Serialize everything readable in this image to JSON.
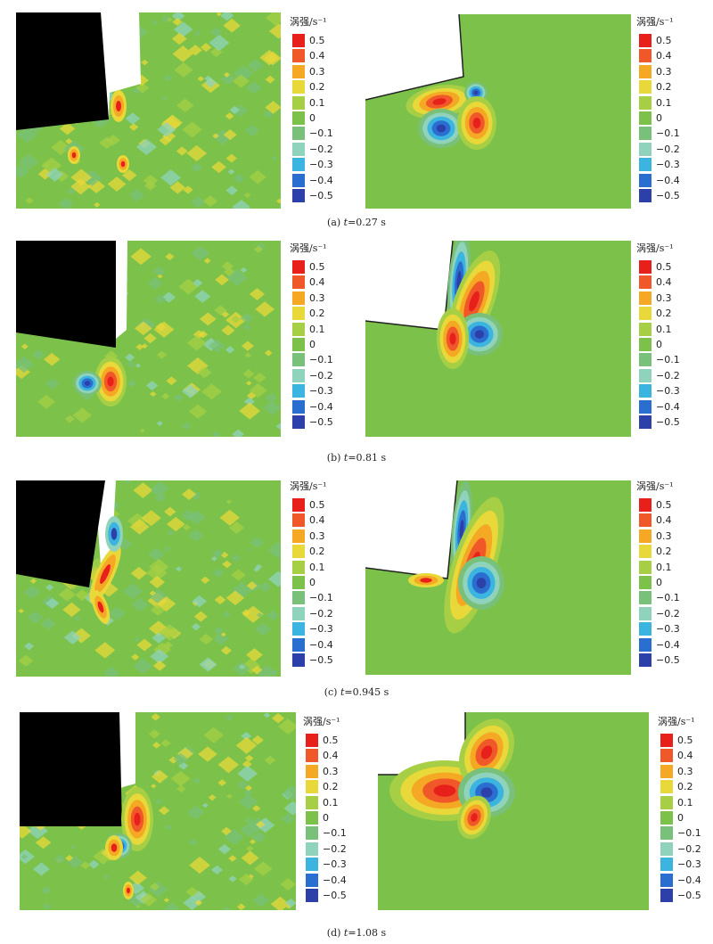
{
  "chart_data": [
    {
      "type": "heatmap",
      "caption_prefix": "(a) ",
      "time_var": "t",
      "time_value": "=0.27 s",
      "colorbar": {
        "title": "涡强/s⁻¹",
        "ticks": [
          "0.5",
          "0.4",
          "0.3",
          "0.2",
          "0.1",
          "0",
          "−0.1",
          "−0.2",
          "−0.3",
          "−0.4",
          "−0.5"
        ],
        "range": [
          -0.5,
          0.5
        ]
      },
      "subplots": [
        {
          "panel": "left",
          "content": "vorticity contour around step with black body, noisy field"
        },
        {
          "panel": "right",
          "content": "vorticity contour around step corner, smooth field"
        }
      ]
    },
    {
      "type": "heatmap",
      "caption_prefix": "(b) ",
      "time_var": "t",
      "time_value": "=0.81 s",
      "colorbar": {
        "title": "涡强/s⁻¹",
        "ticks": [
          "0.5",
          "0.4",
          "0.3",
          "0.2",
          "0.1",
          "0",
          "−0.1",
          "−0.2",
          "−0.3",
          "−0.4",
          "−0.5"
        ],
        "range": [
          -0.5,
          0.5
        ]
      }
    },
    {
      "type": "heatmap",
      "caption_prefix": "(c) ",
      "time_var": "t",
      "time_value": "=0.945 s",
      "colorbar": {
        "title": "涡强/s⁻¹",
        "ticks": [
          "0.5",
          "0.4",
          "0.3",
          "0.2",
          "0.1",
          "0",
          "−0.1",
          "−0.2",
          "−0.3",
          "−0.4",
          "−0.5"
        ],
        "range": [
          -0.5,
          0.5
        ]
      }
    },
    {
      "type": "heatmap",
      "caption_prefix": "(d) ",
      "time_var": "t",
      "time_value": "=1.08 s",
      "colorbar": {
        "title": "涡强/s⁻¹",
        "ticks": [
          "0.5",
          "0.4",
          "0.3",
          "0.2",
          "0.1",
          "0",
          "−0.1",
          "−0.2",
          "−0.3",
          "−0.4",
          "−0.5"
        ],
        "range": [
          -0.5,
          0.5
        ]
      }
    }
  ],
  "colors": {
    "levels": [
      "#e8201c",
      "#f0582a",
      "#f5a823",
      "#e8d83a",
      "#a6cf45",
      "#7cc24a",
      "#79c07a",
      "#8fd3bd",
      "#3cb4e0",
      "#2a6fcf",
      "#2d3fa8"
    ],
    "field": "#7cc24a",
    "body": "#000000"
  }
}
